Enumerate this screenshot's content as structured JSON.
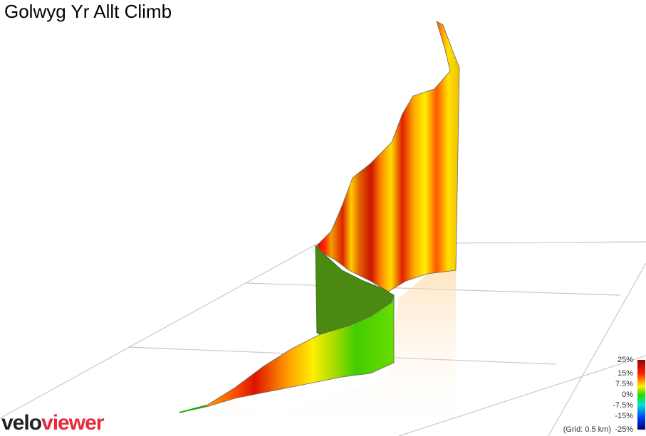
{
  "title": "Golwyg Yr Allt Climb",
  "legend": {
    "labels": [
      "25%",
      "15%",
      "7.5%",
      "0%",
      "-7.5%",
      "-15%",
      "-25%"
    ],
    "grid_note": "(Grid: 0.5 km)"
  },
  "logo": {
    "first": "velo",
    "second": "viewer"
  }
}
